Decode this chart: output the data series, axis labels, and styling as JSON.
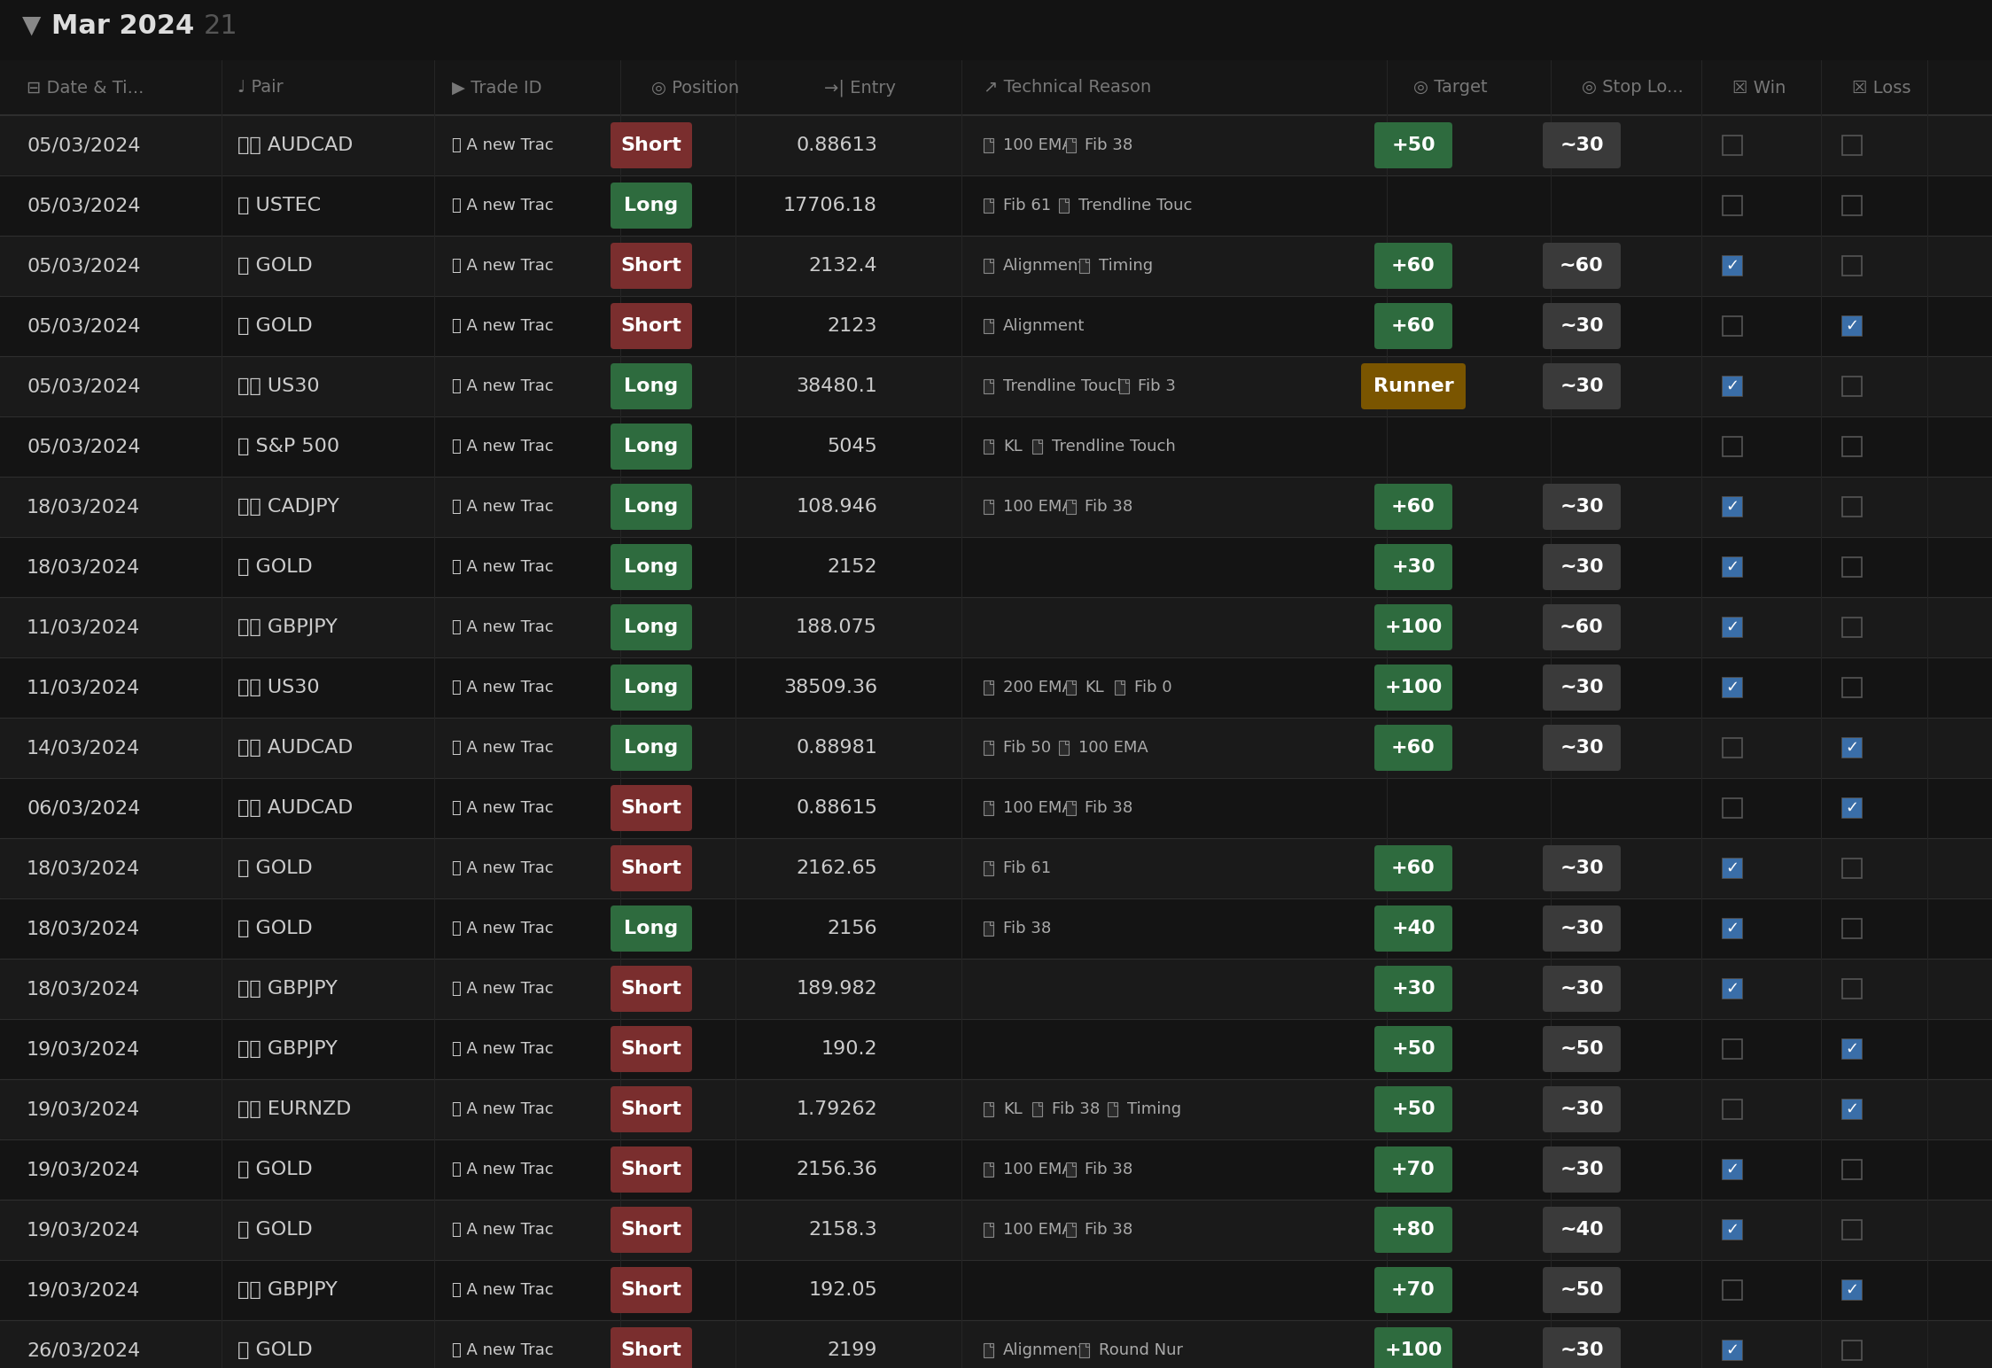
{
  "background_color": "#131313",
  "row_bg_odd": "#1a1a1a",
  "row_bg_even": "#141414",
  "text_color": "#cccccc",
  "header_text_color": "#777777",
  "divider_color": "#2e2e2e",
  "short_bg": "#7a2e2e",
  "long_bg": "#2e6b3e",
  "target_pos_bg": "#2e6b3e",
  "target_runner_bg": "#7a5500",
  "stop_bg": "#3a3a3a",
  "title": "Mar 2024",
  "title_count": "21",
  "rows": [
    {
      "date": "05/03/2024",
      "pair": "AUDCAD",
      "trade_id": "A new Trac",
      "position": "Short",
      "entry": "0.88613",
      "tech": "100 EMA   Fib 38",
      "target": "+50",
      "stop": "~30",
      "win": false,
      "loss": false
    },
    {
      "date": "05/03/2024",
      "pair": "USTEC",
      "trade_id": "A new Trac",
      "position": "Long",
      "entry": "17706.18",
      "tech": "Fib 61   Trendline Touc",
      "target": "",
      "stop": "",
      "win": false,
      "loss": false
    },
    {
      "date": "05/03/2024",
      "pair": "GOLD",
      "trade_id": "A new Trac",
      "position": "Short",
      "entry": "2132.4",
      "tech": "Alignment   Timing",
      "target": "+60",
      "stop": "~60",
      "win": true,
      "loss": false
    },
    {
      "date": "05/03/2024",
      "pair": "GOLD",
      "trade_id": "A new Trac",
      "position": "Short",
      "entry": "2123",
      "tech": "Alignment",
      "target": "+60",
      "stop": "~30",
      "win": false,
      "loss": true
    },
    {
      "date": "05/03/2024",
      "pair": "US30",
      "trade_id": "A new Trac",
      "position": "Long",
      "entry": "38480.1",
      "tech": "Trendline Touch   Fib 3",
      "target": "Runner",
      "stop": "~30",
      "win": true,
      "loss": false
    },
    {
      "date": "05/03/2024",
      "pair": "S&P 500",
      "trade_id": "A new Trac",
      "position": "Long",
      "entry": "5045",
      "tech": "KL   Trendline Touch",
      "target": "",
      "stop": "",
      "win": false,
      "loss": false
    },
    {
      "date": "18/03/2024",
      "pair": "CADJPY",
      "trade_id": "A new Trac",
      "position": "Long",
      "entry": "108.946",
      "tech": "100 EMA   Fib 38",
      "target": "+60",
      "stop": "~30",
      "win": true,
      "loss": false
    },
    {
      "date": "18/03/2024",
      "pair": "GOLD",
      "trade_id": "A new Trac",
      "position": "Long",
      "entry": "2152",
      "tech": "",
      "target": "+30",
      "stop": "~30",
      "win": true,
      "loss": false
    },
    {
      "date": "11/03/2024",
      "pair": "GBPJPY",
      "trade_id": "A new Trac",
      "position": "Long",
      "entry": "188.075",
      "tech": "",
      "target": "+100",
      "stop": "~60",
      "win": true,
      "loss": false
    },
    {
      "date": "11/03/2024",
      "pair": "US30",
      "trade_id": "A new Trac",
      "position": "Long",
      "entry": "38509.36",
      "tech": "200 EMA   KL   Fib 0",
      "target": "+100",
      "stop": "~30",
      "win": true,
      "loss": false
    },
    {
      "date": "14/03/2024",
      "pair": "AUDCAD",
      "trade_id": "A new Trac",
      "position": "Long",
      "entry": "0.88981",
      "tech": "Fib 50   100 EMA",
      "target": "+60",
      "stop": "~30",
      "win": false,
      "loss": true
    },
    {
      "date": "06/03/2024",
      "pair": "AUDCAD",
      "trade_id": "A new Trac",
      "position": "Short",
      "entry": "0.88615",
      "tech": "100 EMA   Fib 38",
      "target": "",
      "stop": "",
      "win": false,
      "loss": true
    },
    {
      "date": "18/03/2024",
      "pair": "GOLD",
      "trade_id": "A new Trac",
      "position": "Short",
      "entry": "2162.65",
      "tech": "Fib 61",
      "target": "+60",
      "stop": "~30",
      "win": true,
      "loss": false
    },
    {
      "date": "18/03/2024",
      "pair": "GOLD",
      "trade_id": "A new Trac",
      "position": "Long",
      "entry": "2156",
      "tech": "Fib 38",
      "target": "+40",
      "stop": "~30",
      "win": true,
      "loss": false
    },
    {
      "date": "18/03/2024",
      "pair": "GBPJPY",
      "trade_id": "A new Trac",
      "position": "Short",
      "entry": "189.982",
      "tech": "",
      "target": "+30",
      "stop": "~30",
      "win": true,
      "loss": false
    },
    {
      "date": "19/03/2024",
      "pair": "GBPJPY",
      "trade_id": "A new Trac",
      "position": "Short",
      "entry": "190.2",
      "tech": "",
      "target": "+50",
      "stop": "~50",
      "win": false,
      "loss": true
    },
    {
      "date": "19/03/2024",
      "pair": "EURNZD",
      "trade_id": "A new Trac",
      "position": "Short",
      "entry": "1.79262",
      "tech": "KL   Fib 38   Timing",
      "target": "+50",
      "stop": "~30",
      "win": false,
      "loss": true
    },
    {
      "date": "19/03/2024",
      "pair": "GOLD",
      "trade_id": "A new Trac",
      "position": "Short",
      "entry": "2156.36",
      "tech": "100 EMA   Fib 38",
      "target": "+70",
      "stop": "~30",
      "win": true,
      "loss": false
    },
    {
      "date": "19/03/2024",
      "pair": "GOLD",
      "trade_id": "A new Trac",
      "position": "Short",
      "entry": "2158.3",
      "tech": "100 EMA   Fib 38",
      "target": "+80",
      "stop": "~40",
      "win": true,
      "loss": false
    },
    {
      "date": "19/03/2024",
      "pair": "GBPJPY",
      "trade_id": "A new Trac",
      "position": "Short",
      "entry": "192.05",
      "tech": "",
      "target": "+70",
      "stop": "~50",
      "win": false,
      "loss": true
    },
    {
      "date": "26/03/2024",
      "pair": "GOLD",
      "trade_id": "A new Trac",
      "position": "Short",
      "entry": "2199",
      "tech": "Alignment   Round Nur",
      "target": "+100",
      "stop": "~30",
      "win": true,
      "loss": false
    }
  ]
}
